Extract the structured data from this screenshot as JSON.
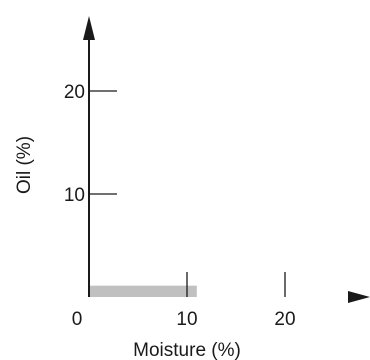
{
  "chart_data": {
    "type": "bar",
    "orientation": "horizontal",
    "xlabel": "Moisture (%)",
    "ylabel": "Oil (%)",
    "xlim": [
      0,
      28
    ],
    "ylim": [
      0,
      27
    ],
    "x_ticks": [
      0,
      10,
      20
    ],
    "x_tick_labels": [
      "0",
      "10",
      "20"
    ],
    "y_ticks": [
      10,
      20
    ],
    "y_tick_labels": [
      "10",
      "20"
    ],
    "bars": [
      {
        "x_start": 0,
        "x_end": 11,
        "y_start": 0,
        "y_end": 1.1,
        "color": "#c0c0c0"
      }
    ],
    "grid": false,
    "legend": "none",
    "axis_color": "#1a1a1a"
  }
}
